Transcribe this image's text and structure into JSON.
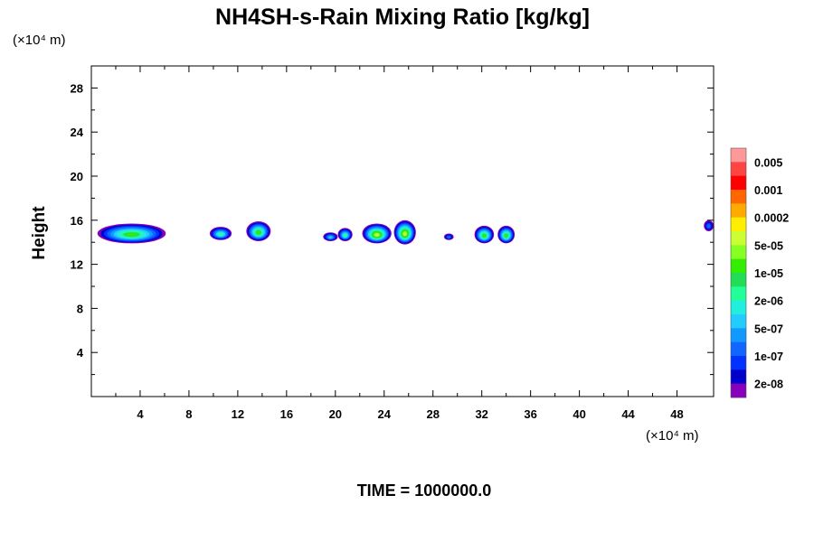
{
  "chart_data": {
    "type": "heatmap",
    "title": "NH4SH-s-Rain Mixing Ratio [kg/kg]",
    "xlabel": "",
    "ylabel": "Height",
    "x_unit_label": "(×10⁴ m)",
    "y_unit_label": "(×10⁴ m)",
    "xlim": [
      0,
      51
    ],
    "ylim": [
      0,
      30
    ],
    "x_ticks": [
      4,
      8,
      12,
      16,
      20,
      24,
      28,
      32,
      36,
      40,
      44,
      48
    ],
    "y_ticks": [
      4,
      8,
      12,
      16,
      20,
      24,
      28
    ],
    "x_tick_labels": [
      "4",
      "8",
      "12",
      "16",
      "20",
      "24",
      "28",
      "32",
      "36",
      "40",
      "44",
      "48"
    ],
    "y_tick_labels": [
      "4",
      "8",
      "12",
      "16",
      "20",
      "24",
      "28"
    ],
    "time_label": "TIME = 1000000.0",
    "colorbar": {
      "levels": [
        "0.005",
        "0.001",
        "0.0002",
        "5e-05",
        "1e-05",
        "2e-06",
        "5e-07",
        "1e-07",
        "2e-08"
      ],
      "colors_top_to_bottom": [
        "#ff9999",
        "#ff4444",
        "#ff0000",
        "#ff6600",
        "#ffaa00",
        "#ffee00",
        "#ccff33",
        "#88ff22",
        "#33ee00",
        "#22dd55",
        "#22ff99",
        "#22eedd",
        "#22ccff",
        "#1199ff",
        "#1166ff",
        "#0033ff",
        "#0000cc",
        "#8800bb"
      ]
    },
    "cloud_patches": [
      {
        "x_center": 3.3,
        "x_halfwidth": 2.8,
        "y_center": 14.8,
        "y_halfheight": 0.9,
        "peak_level": 5
      },
      {
        "x_center": 10.6,
        "x_halfwidth": 0.9,
        "y_center": 14.8,
        "y_halfheight": 0.6,
        "peak_level": 4
      },
      {
        "x_center": 13.7,
        "x_halfwidth": 1.0,
        "y_center": 15.0,
        "y_halfheight": 0.9,
        "peak_level": 5
      },
      {
        "x_center": 19.6,
        "x_halfwidth": 0.6,
        "y_center": 14.5,
        "y_halfheight": 0.4,
        "peak_level": 3
      },
      {
        "x_center": 20.8,
        "x_halfwidth": 0.6,
        "y_center": 14.7,
        "y_halfheight": 0.6,
        "peak_level": 4
      },
      {
        "x_center": 23.4,
        "x_halfwidth": 1.2,
        "y_center": 14.8,
        "y_halfheight": 0.9,
        "peak_level": 6
      },
      {
        "x_center": 25.7,
        "x_halfwidth": 0.9,
        "y_center": 14.9,
        "y_halfheight": 1.1,
        "peak_level": 6
      },
      {
        "x_center": 29.3,
        "x_halfwidth": 0.4,
        "y_center": 14.5,
        "y_halfheight": 0.3,
        "peak_level": 2
      },
      {
        "x_center": 32.2,
        "x_halfwidth": 0.8,
        "y_center": 14.7,
        "y_halfheight": 0.8,
        "peak_level": 5
      },
      {
        "x_center": 34.0,
        "x_halfwidth": 0.7,
        "y_center": 14.7,
        "y_halfheight": 0.8,
        "peak_level": 5
      },
      {
        "x_center": 50.6,
        "x_halfwidth": 0.4,
        "y_center": 15.5,
        "y_halfheight": 0.5,
        "peak_level": 2
      }
    ]
  }
}
